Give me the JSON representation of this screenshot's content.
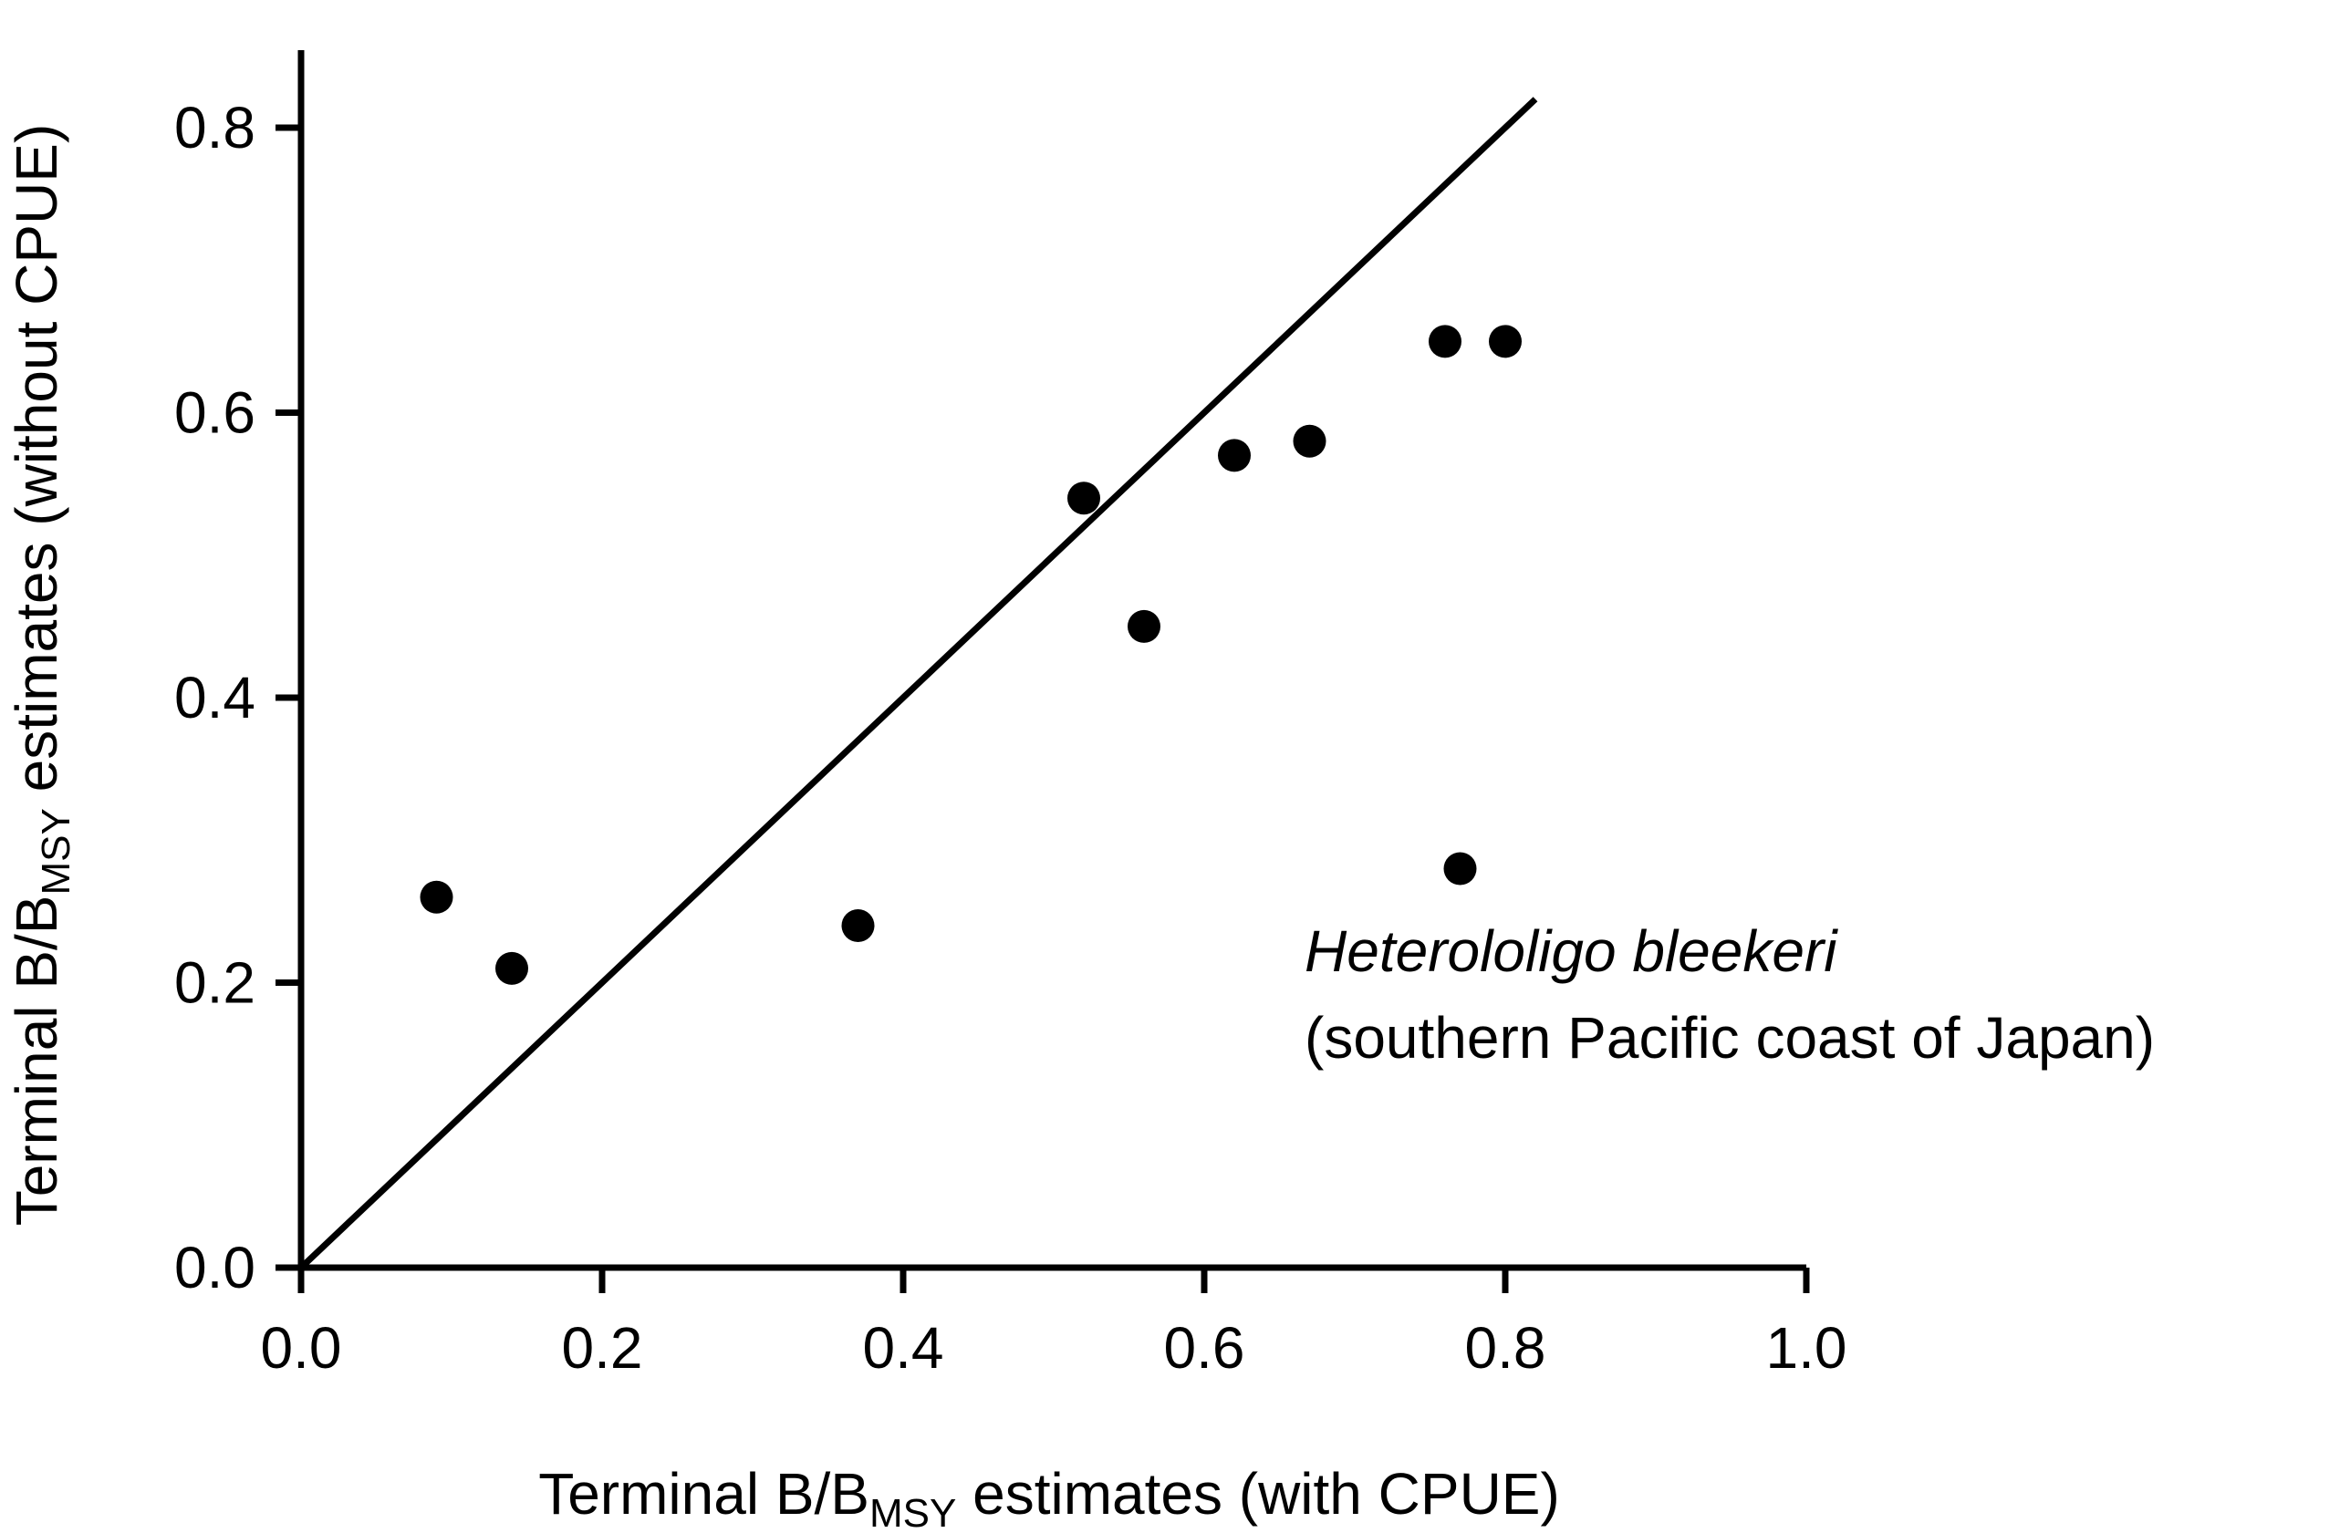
{
  "chart_data": {
    "type": "scatter",
    "title": "",
    "xlabel": {
      "prefix": "Terminal B/B",
      "sub": "MSY",
      "suffix": " estimates (with CPUE)"
    },
    "ylabel": {
      "prefix": "Terminal B/B",
      "sub": "MSY",
      "suffix": " estimates (without CPUE)"
    },
    "xlim": [
      0.0,
      1.0
    ],
    "ylim": [
      0.0,
      0.8
    ],
    "x_ticks": [
      "0.0",
      "0.2",
      "0.4",
      "0.6",
      "0.8",
      "1.0"
    ],
    "y_ticks": [
      "0.0",
      "0.2",
      "0.4",
      "0.6",
      "0.8"
    ],
    "grid": false,
    "reference_line": {
      "type": "1:1",
      "from": [
        0.0,
        0.0
      ],
      "to": [
        0.82,
        0.82
      ]
    },
    "points": [
      {
        "x": 0.09,
        "y": 0.26
      },
      {
        "x": 0.14,
        "y": 0.21
      },
      {
        "x": 0.37,
        "y": 0.24
      },
      {
        "x": 0.52,
        "y": 0.54
      },
      {
        "x": 0.56,
        "y": 0.45
      },
      {
        "x": 0.62,
        "y": 0.57
      },
      {
        "x": 0.67,
        "y": 0.58
      },
      {
        "x": 0.76,
        "y": 0.65
      },
      {
        "x": 0.8,
        "y": 0.65
      },
      {
        "x": 0.77,
        "y": 0.28
      }
    ],
    "annotation": {
      "species": "Heterololigo bleekeri",
      "region": "(southern Pacific coast of Japan)"
    }
  }
}
